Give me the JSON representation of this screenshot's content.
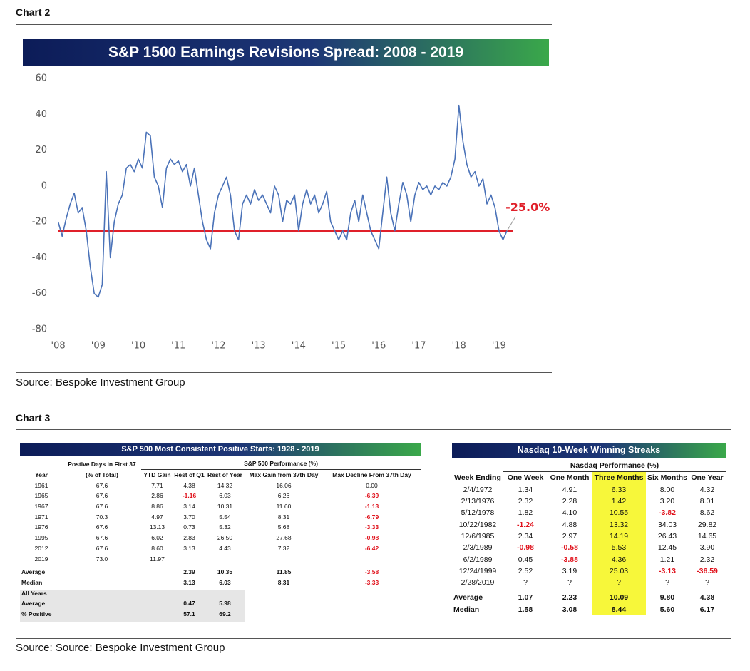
{
  "chart2": {
    "heading": "Chart 2",
    "source": "Source: Bespoke Investment Group"
  },
  "chart_data": {
    "type": "line",
    "title": "S&P 1500 Earnings Revisions Spread: 2008 - 2019",
    "color": "#4a72b8",
    "x": [
      2008.0,
      2008.1,
      2008.2,
      2008.3,
      2008.4,
      2008.5,
      2008.6,
      2008.7,
      2008.8,
      2008.9,
      2009.0,
      2009.1,
      2009.2,
      2009.3,
      2009.4,
      2009.5,
      2009.6,
      2009.7,
      2009.8,
      2009.9,
      2010.0,
      2010.1,
      2010.2,
      2010.3,
      2010.4,
      2010.5,
      2010.6,
      2010.7,
      2010.8,
      2010.9,
      2011.0,
      2011.1,
      2011.2,
      2011.3,
      2011.4,
      2011.5,
      2011.6,
      2011.7,
      2011.8,
      2011.9,
      2012.0,
      2012.1,
      2012.2,
      2012.3,
      2012.4,
      2012.5,
      2012.6,
      2012.7,
      2012.8,
      2012.9,
      2013.0,
      2013.1,
      2013.2,
      2013.3,
      2013.4,
      2013.5,
      2013.6,
      2013.7,
      2013.8,
      2013.9,
      2014.0,
      2014.1,
      2014.2,
      2014.3,
      2014.4,
      2014.5,
      2014.6,
      2014.7,
      2014.8,
      2014.9,
      2015.0,
      2015.1,
      2015.2,
      2015.3,
      2015.4,
      2015.5,
      2015.6,
      2015.7,
      2015.8,
      2015.9,
      2016.0,
      2016.1,
      2016.2,
      2016.3,
      2016.4,
      2016.5,
      2016.6,
      2016.7,
      2016.8,
      2016.9,
      2017.0,
      2017.1,
      2017.2,
      2017.3,
      2017.4,
      2017.5,
      2017.6,
      2017.7,
      2017.8,
      2017.9,
      2018.0,
      2018.1,
      2018.2,
      2018.3,
      2018.4,
      2018.5,
      2018.6,
      2018.7,
      2018.8,
      2018.9,
      2019.0,
      2019.1,
      2019.2
    ],
    "values": [
      -20,
      -28,
      -18,
      -10,
      -4,
      -15,
      -12,
      -25,
      -45,
      -60,
      -62,
      -55,
      8,
      -40,
      -20,
      -10,
      -5,
      10,
      12,
      8,
      15,
      10,
      30,
      28,
      5,
      0,
      -12,
      10,
      15,
      12,
      14,
      8,
      12,
      0,
      10,
      -5,
      -20,
      -30,
      -35,
      -15,
      -5,
      0,
      5,
      -5,
      -25,
      -30,
      -10,
      -5,
      -10,
      -2,
      -8,
      -5,
      -10,
      -15,
      0,
      -5,
      -20,
      -8,
      -10,
      -5,
      -25,
      -10,
      -2,
      -10,
      -5,
      -15,
      -10,
      -3,
      -20,
      -25,
      -30,
      -25,
      -30,
      -15,
      -8,
      -20,
      -5,
      -15,
      -25,
      -30,
      -35,
      -15,
      5,
      -15,
      -25,
      -10,
      2,
      -5,
      -20,
      -5,
      2,
      -2,
      0,
      -5,
      0,
      -2,
      2,
      0,
      5,
      15,
      45,
      25,
      12,
      5,
      8,
      0,
      4,
      -10,
      -5,
      -12,
      -25,
      -30,
      -25
    ],
    "xlim": [
      2007.9,
      2019.5
    ],
    "xticks": [
      {
        "value": 2008,
        "label": "'08"
      },
      {
        "value": 2009,
        "label": "'09"
      },
      {
        "value": 2010,
        "label": "'10"
      },
      {
        "value": 2011,
        "label": "'11"
      },
      {
        "value": 2012,
        "label": "'12"
      },
      {
        "value": 2013,
        "label": "'13"
      },
      {
        "value": 2014,
        "label": "'14"
      },
      {
        "value": 2015,
        "label": "'15"
      },
      {
        "value": 2016,
        "label": "'16"
      },
      {
        "value": 2017,
        "label": "'17"
      },
      {
        "value": 2018,
        "label": "'18"
      },
      {
        "value": 2019,
        "label": "'19"
      }
    ],
    "ylim": [
      -80,
      60
    ],
    "yticks": [
      -80,
      -60,
      -40,
      -20,
      0,
      20,
      40,
      60
    ],
    "grid": false,
    "annotation": {
      "value": -25,
      "label": "-25.0%",
      "color": "#e0202a"
    }
  },
  "chart3": {
    "heading": "Chart 3",
    "source": "Source: Source: Bespoke Investment Group"
  },
  "table1": {
    "title": "S&P 500 Most Consistent Positive Starts: 1928 - 2019",
    "group_headers": [
      "Postive Days in First 37",
      "S&P 500 Performance (%)"
    ],
    "columns": [
      "Year",
      "(% of Total)",
      "YTD Gain",
      "Rest of Q1",
      "Rest of Year",
      "Max Gain from 37th Day",
      "Max Decline From 37th Day"
    ],
    "rows": [
      [
        "1961",
        "67.6",
        "7.71",
        "4.38",
        "14.32",
        "16.06",
        "0.00"
      ],
      [
        "1965",
        "67.6",
        "2.86",
        "-1.16",
        "6.03",
        "6.26",
        "-6.39"
      ],
      [
        "1967",
        "67.6",
        "8.86",
        "3.14",
        "10.31",
        "11.60",
        "-1.13"
      ],
      [
        "1971",
        "70.3",
        "4.97",
        "3.70",
        "5.54",
        "8.31",
        "-6.79"
      ],
      [
        "1976",
        "67.6",
        "13.13",
        "0.73",
        "5.32",
        "5.68",
        "-3.33"
      ],
      [
        "1995",
        "67.6",
        "6.02",
        "2.83",
        "26.50",
        "27.68",
        "-0.98"
      ],
      [
        "2012",
        "67.6",
        "8.60",
        "3.13",
        "4.43",
        "7.32",
        "-6.42"
      ],
      [
        "2019",
        "73.0",
        "11.97",
        null,
        null,
        null,
        null
      ]
    ],
    "summary": [
      [
        "Average",
        null,
        null,
        "2.39",
        "10.35",
        "11.85",
        "-3.58"
      ],
      [
        "Median",
        null,
        null,
        "3.13",
        "6.03",
        "8.31",
        "-3.33"
      ]
    ],
    "all_years": {
      "label": "All Years",
      "rows": [
        [
          "Average",
          null,
          null,
          "0.47",
          "5.98",
          null,
          null
        ],
        [
          "% Positive",
          null,
          null,
          "57.1",
          "69.2",
          null,
          null
        ]
      ]
    }
  },
  "table2": {
    "title": "Nasdaq 10-Week Winning Streaks",
    "group_header": "Nasdaq Performance (%)",
    "columns": [
      "Week Ending",
      "One Week",
      "One Month",
      "Three Months",
      "Six Months",
      "One Year"
    ],
    "highlight_column": 3,
    "rows": [
      [
        "2/4/1972",
        "1.34",
        "4.91",
        "6.33",
        "8.00",
        "4.32"
      ],
      [
        "2/13/1976",
        "2.32",
        "2.28",
        "1.42",
        "3.20",
        "8.01"
      ],
      [
        "5/12/1978",
        "1.82",
        "4.10",
        "10.55",
        "-3.82",
        "8.62"
      ],
      [
        "10/22/1982",
        "-1.24",
        "4.88",
        "13.32",
        "34.03",
        "29.82"
      ],
      [
        "12/6/1985",
        "2.34",
        "2.97",
        "14.19",
        "26.43",
        "14.65"
      ],
      [
        "2/3/1989",
        "-0.98",
        "-0.58",
        "5.53",
        "12.45",
        "3.90"
      ],
      [
        "6/2/1989",
        "0.45",
        "-3.88",
        "4.36",
        "1.21",
        "2.32"
      ],
      [
        "12/24/1999",
        "2.52",
        "3.19",
        "25.03",
        "-3.13",
        "-36.59"
      ],
      [
        "2/28/2019",
        "?",
        "?",
        "?",
        "?",
        "?"
      ]
    ],
    "summary": [
      [
        "Average",
        "1.07",
        "2.23",
        "10.09",
        "9.80",
        "4.38"
      ],
      [
        "Median",
        "1.58",
        "3.08",
        "8.44",
        "5.60",
        "6.17"
      ]
    ]
  }
}
